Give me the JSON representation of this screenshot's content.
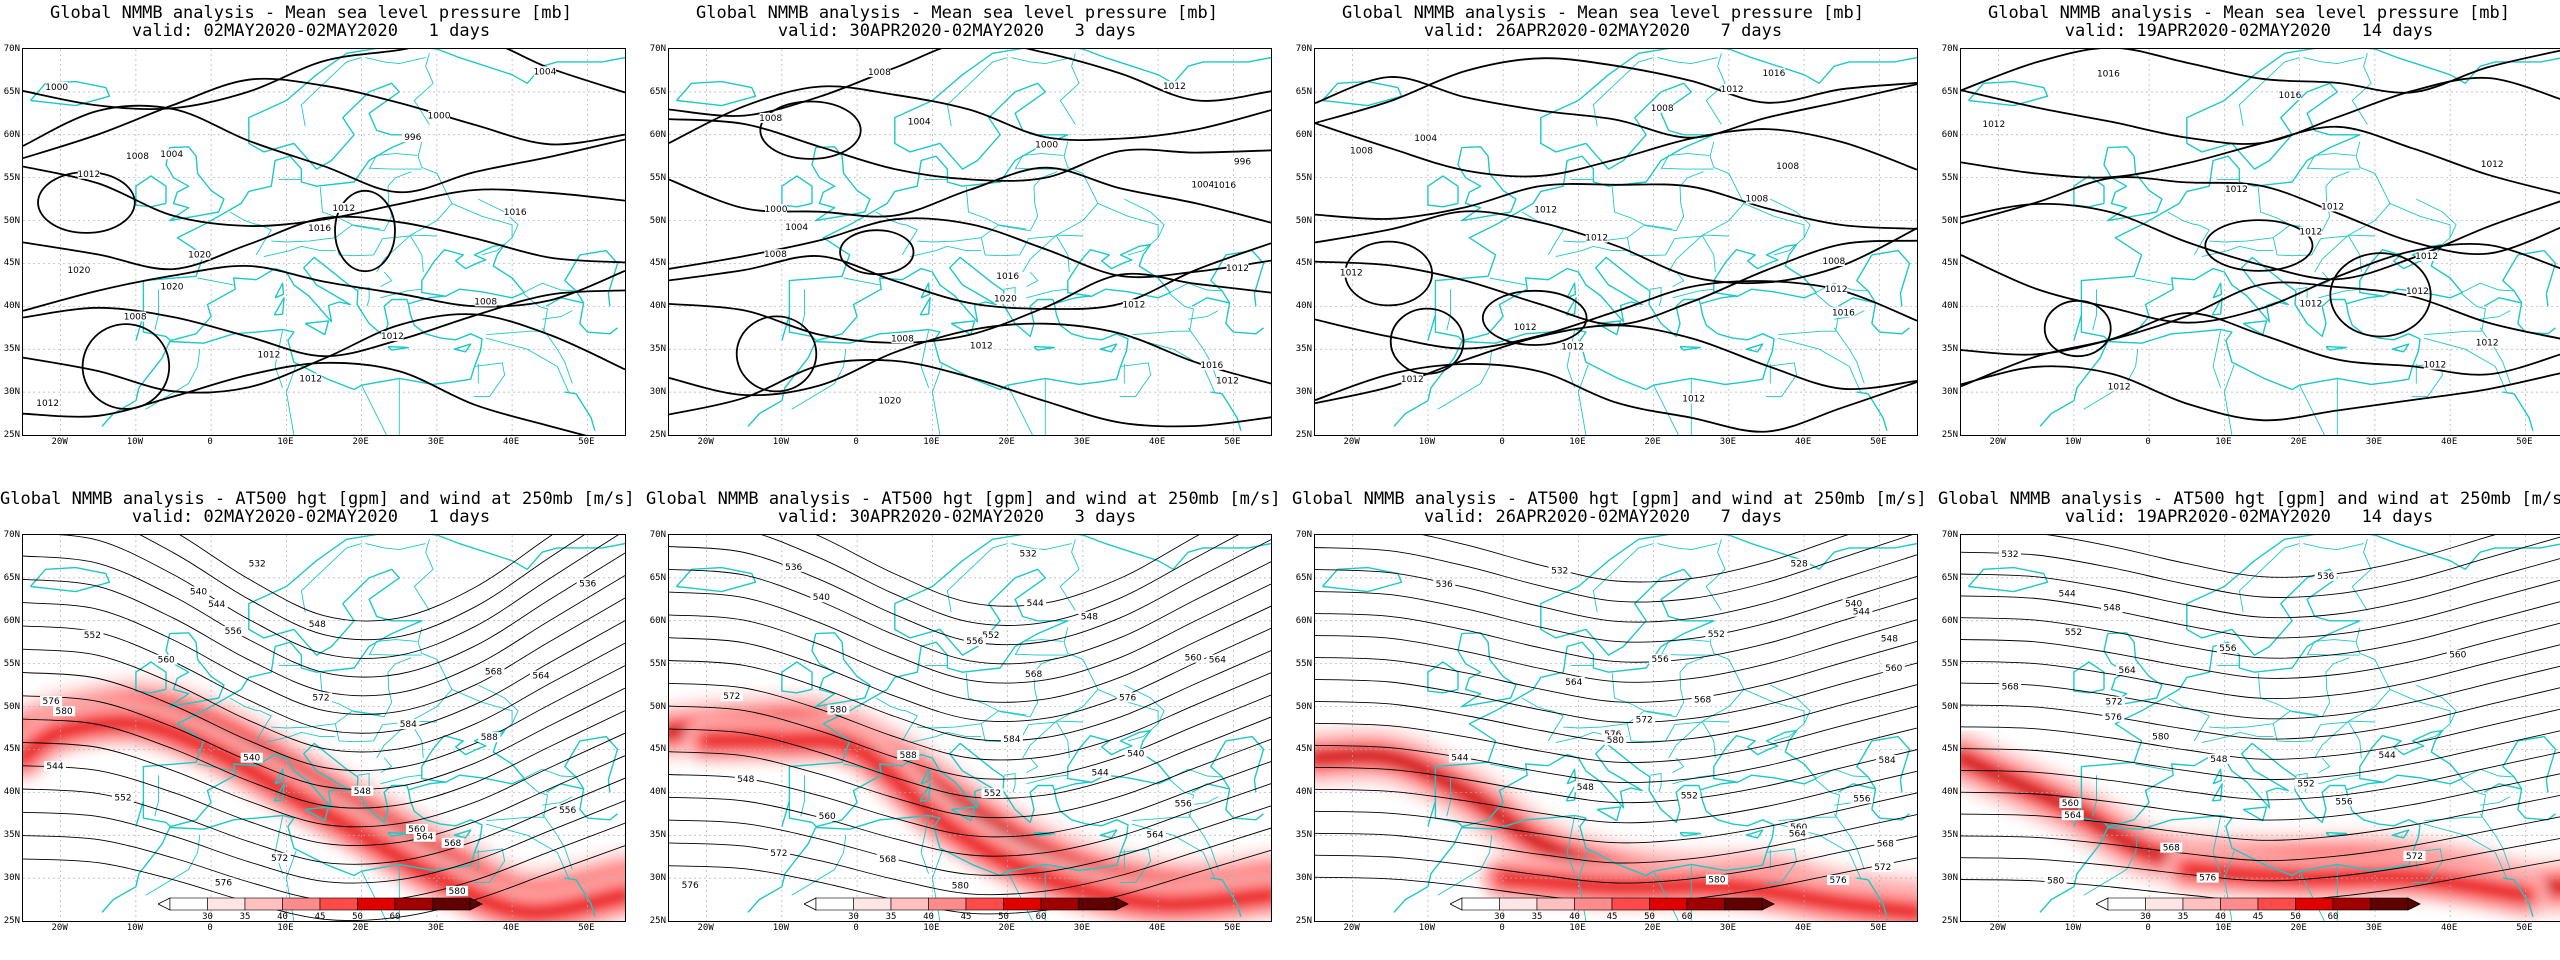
{
  "panels": [
    {
      "title": "Global NMMB analysis - Mean sea level pressure [mb]",
      "valid": "valid: 02MAY2020-02MAY2020   1 days",
      "type": "mslp",
      "labels": [
        "1004",
        "1000",
        "1000",
        "996",
        "1004",
        "1008",
        "1012",
        "1012",
        "1016",
        "1016",
        "1020",
        "1020",
        "1020",
        "1008",
        "1008",
        "1012",
        "1012",
        "1012",
        "1012"
      ]
    },
    {
      "title": "Global NMMB analysis - Mean sea level pressure [mb]",
      "valid": "valid: 30APR2020-02MAY2020   3 days",
      "type": "mslp",
      "labels": [
        "1008",
        "1012",
        "1008",
        "1004",
        "1000",
        "996",
        "1004",
        "1016",
        "1000",
        "1004",
        "1008",
        "1012",
        "1016",
        "1020",
        "1012",
        "1008",
        "1012",
        "1016",
        "1012",
        "1020"
      ]
    },
    {
      "title": "Global NMMB analysis - Mean sea level pressure [mb]",
      "valid": "valid: 26APR2020-02MAY2020   7 days",
      "type": "mslp",
      "labels": [
        "1016",
        "1012",
        "1008",
        "1004",
        "1008",
        "1008",
        "1008",
        "1012",
        "1012",
        "1008",
        "1012",
        "1012",
        "1016",
        "1012",
        "1012",
        "1012",
        "1012"
      ]
    },
    {
      "title": "Global NMMB analysis - Mean sea level pressure [mb]",
      "valid": "valid: 19APR2020-02MAY2020   14 days",
      "type": "mslp",
      "labels": [
        "1016",
        "1016",
        "1012",
        "1012",
        "1012",
        "1012",
        "1012",
        "1012",
        "1012",
        "1012",
        "1012",
        "1012",
        "1012"
      ]
    },
    {
      "title": "Global NMMB analysis - AT500 hgt [gpm] and wind at 250mb [m/s]",
      "valid": "valid: 02MAY2020-02MAY2020   1 days",
      "type": "z500",
      "labels": [
        "532",
        "536",
        "540",
        "544",
        "548",
        "552",
        "556",
        "560",
        "564",
        "568",
        "572",
        "576",
        "580",
        "584",
        "588",
        "540",
        "544",
        "548",
        "552",
        "556",
        "560",
        "564",
        "568",
        "572",
        "576",
        "580"
      ]
    },
    {
      "title": "Global NMMB analysis - AT500 hgt [gpm] and wind at 250mb [m/s]",
      "valid": "valid: 30APR2020-02MAY2020   3 days",
      "type": "z500",
      "labels": [
        "532",
        "536",
        "540",
        "544",
        "548",
        "552",
        "556",
        "560",
        "564",
        "568",
        "572",
        "576",
        "580",
        "584",
        "588",
        "540",
        "544",
        "548",
        "552",
        "556",
        "560",
        "564",
        "568",
        "572",
        "576",
        "580"
      ]
    },
    {
      "title": "Global NMMB analysis - AT500 hgt [gpm] and wind at 250mb [m/s]",
      "valid": "valid: 26APR2020-02MAY2020   7 days",
      "type": "z500",
      "labels": [
        "528",
        "532",
        "536",
        "540",
        "544",
        "548",
        "552",
        "556",
        "560",
        "564",
        "568",
        "572",
        "576",
        "580",
        "584",
        "544",
        "548",
        "552",
        "556",
        "560",
        "564",
        "568",
        "572",
        "576",
        "580"
      ]
    },
    {
      "title": "Global NMMB analysis - AT500 hgt [gpm] and wind at 250mb [m/s]",
      "valid": "valid: 19APR2020-02MAY2020   14 days",
      "type": "z500",
      "labels": [
        "532",
        "536",
        "544",
        "548",
        "552",
        "556",
        "560",
        "564",
        "568",
        "572",
        "576",
        "580",
        "544",
        "548",
        "552",
        "556",
        "560",
        "564",
        "568",
        "572",
        "576",
        "580"
      ]
    }
  ],
  "lat_labels": [
    "70N",
    "65N",
    "60N",
    "55N",
    "50N",
    "45N",
    "40N",
    "35N",
    "30N",
    "25N"
  ],
  "lon_labels": [
    "20W",
    "10W",
    "0",
    "10E",
    "20E",
    "30E",
    "40E",
    "50E"
  ],
  "colorbar": {
    "labels": [
      "30",
      "35",
      "40",
      "45",
      "50",
      "60"
    ],
    "colors": [
      "#ffe6e6",
      "#ffc0c0",
      "#ff8c8c",
      "#ff4a4a",
      "#e00000",
      "#a00000",
      "#600000"
    ]
  },
  "colors": {
    "coast": "#1ec8c8",
    "contour": "#000000",
    "grid": "#b0b0b0"
  }
}
